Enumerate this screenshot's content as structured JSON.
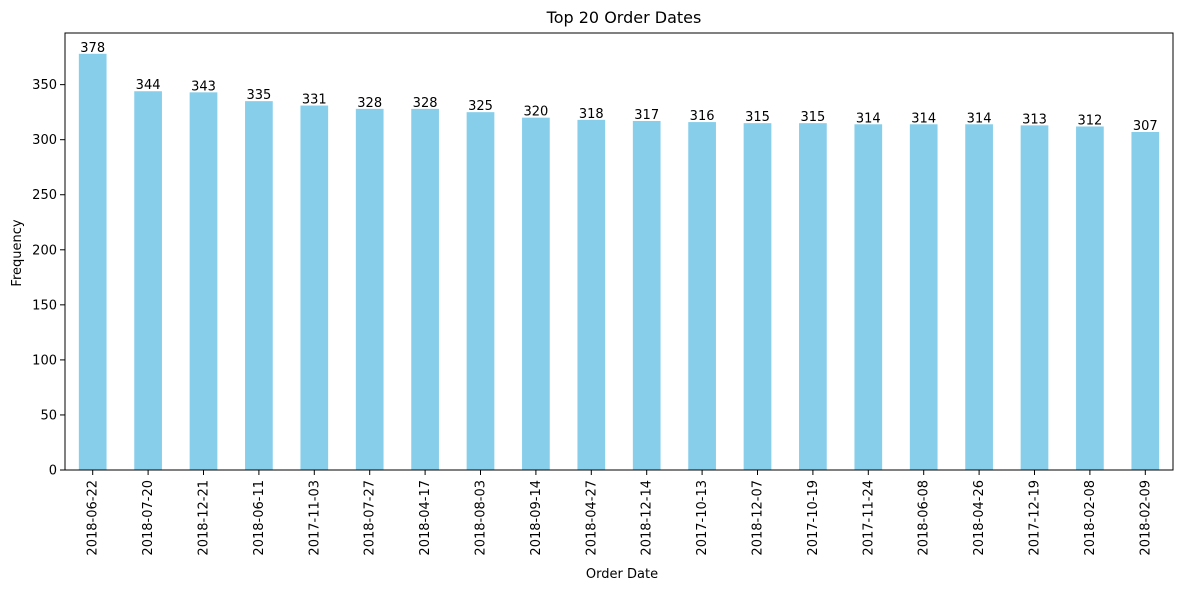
{
  "chart_data": {
    "type": "bar",
    "title": "Top 20 Order Dates",
    "xlabel": "Order Date",
    "ylabel": "Frequency",
    "categories": [
      "2018-06-22",
      "2018-07-20",
      "2018-12-21",
      "2018-06-11",
      "2017-11-03",
      "2018-07-27",
      "2018-04-17",
      "2018-08-03",
      "2018-09-14",
      "2018-04-27",
      "2018-12-14",
      "2017-10-13",
      "2018-12-07",
      "2017-10-19",
      "2017-11-24",
      "2018-06-08",
      "2018-04-26",
      "2017-12-19",
      "2018-02-08",
      "2018-02-09"
    ],
    "values": [
      378,
      344,
      343,
      335,
      331,
      328,
      328,
      325,
      320,
      318,
      317,
      316,
      315,
      315,
      314,
      314,
      314,
      313,
      312,
      307
    ],
    "yticks": [
      0,
      50,
      100,
      150,
      200,
      250,
      300,
      350
    ],
    "ylim": [
      0,
      396.9
    ],
    "bar_color": "#87ceeb",
    "grid": false,
    "legend": "none"
  }
}
